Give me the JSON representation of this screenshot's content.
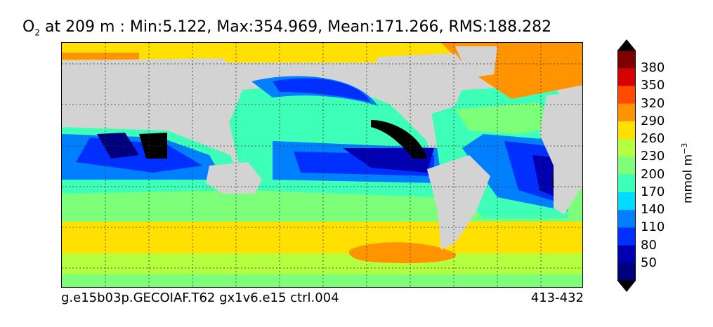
{
  "title": {
    "species": "O",
    "species_sub": "2",
    "rest": " at 209 m : Min:5.122, Max:354.969, Mean:171.266, RMS:188.282"
  },
  "footer": {
    "left": "g.e15b03p.GECOIAF.T62 gx1v6.e15 ctrl.004",
    "right": "413-432"
  },
  "colorbar": {
    "units": "mmol m",
    "units_exp": "−3",
    "ticks": [
      "380",
      "350",
      "320",
      "290",
      "260",
      "230",
      "200",
      "170",
      "140",
      "110",
      "80",
      "50"
    ],
    "colors": [
      "#7f0000",
      "#d50000",
      "#ff4a00",
      "#ff9400",
      "#ffe000",
      "#b4ff3f",
      "#7dff7a",
      "#3dffb8",
      "#00dcff",
      "#0080ff",
      "#0030ff",
      "#0000b0",
      "#00007f"
    ]
  },
  "map": {
    "land_color": "#d3d3d3",
    "grid": true
  }
}
